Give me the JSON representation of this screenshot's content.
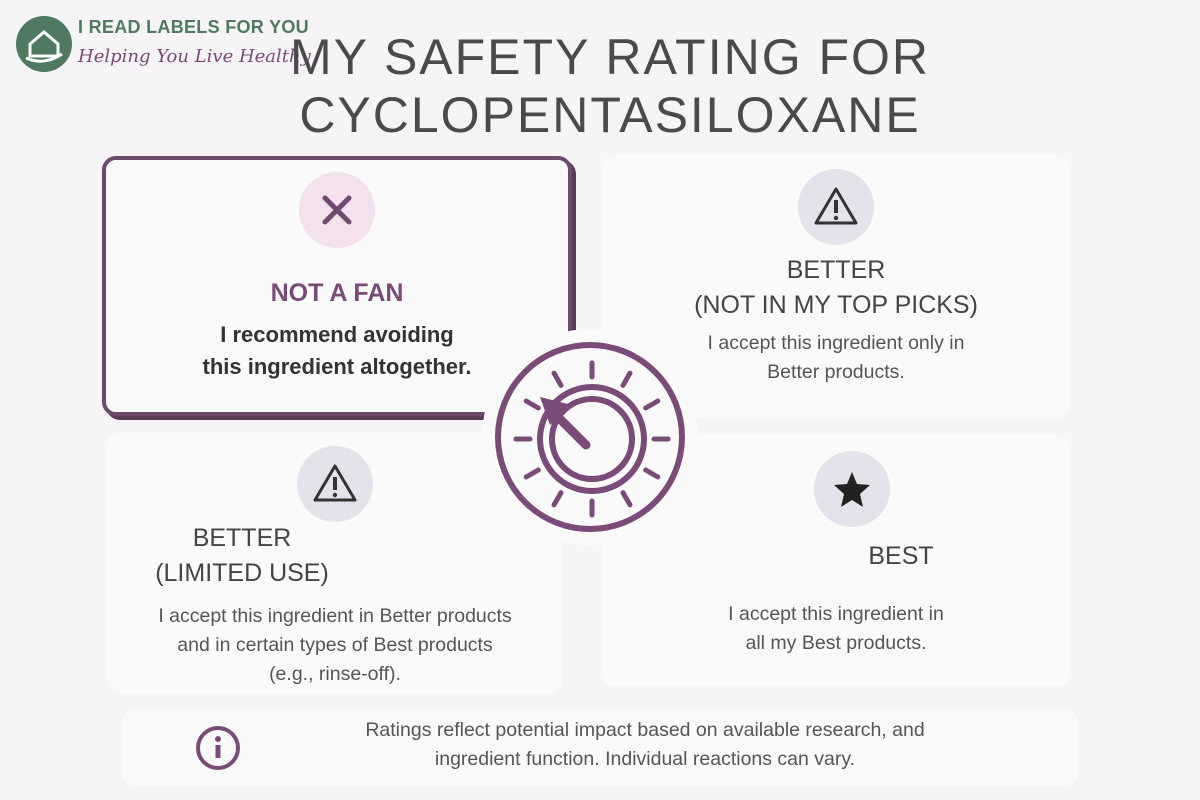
{
  "logo": {
    "name": "I READ LABELS FOR YOU",
    "tagline": "Helping You Live Healthy"
  },
  "title": [
    "MY SAFETY RATING FOR",
    "CYCLOPENTASILOXANE"
  ],
  "cards": [
    {
      "heading": [
        "NOT A FAN"
      ],
      "body": [
        "I recommend avoiding",
        "this ingredient altogether."
      ]
    },
    {
      "heading": [
        "BETTER",
        "(NOT IN MY TOP PICKS)"
      ],
      "body": [
        "I accept this ingredient only in",
        "Better products."
      ]
    },
    {
      "heading": [
        "BETTER",
        "(LIMITED USE)"
      ],
      "body": [
        "I accept this ingredient in Better products",
        "and in certain types of Best products",
        "(e.g., rinse-off)."
      ]
    },
    {
      "heading": [
        "BEST"
      ],
      "body": [
        "I accept this ingredient in",
        "all my Best products."
      ]
    }
  ],
  "note": [
    "Ratings reflect potential impact based on available research, and",
    "ingredient function. Individual reactions can vary."
  ]
}
